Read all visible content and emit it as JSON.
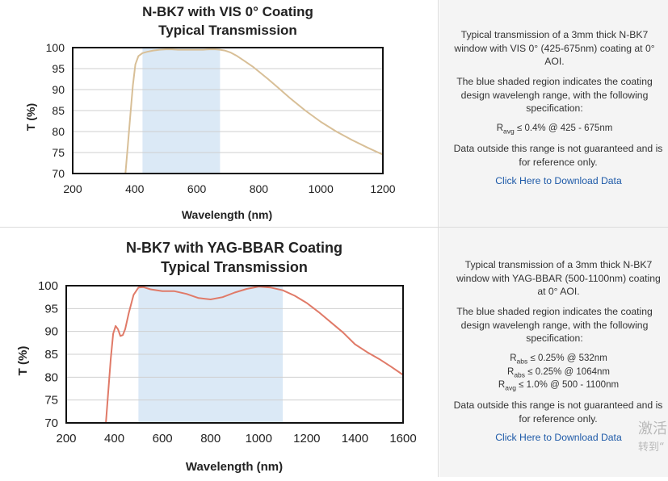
{
  "chart_data": [
    {
      "type": "line",
      "title": "N-BK7 with VIS 0° Coating",
      "subtitle": "Typical Transmission",
      "xlabel": "Wavelength (nm)",
      "ylabel": "T (%)",
      "xlim": [
        200,
        1200
      ],
      "ylim": [
        70,
        100
      ],
      "xticks": [
        "200",
        "400",
        "600",
        "800",
        "1000",
        "1200"
      ],
      "yticks": [
        "70",
        "75",
        "80",
        "85",
        "90",
        "95",
        "100"
      ],
      "grid": "horizontal",
      "shaded_range": [
        425,
        675
      ],
      "line_color": "#d8bf97",
      "shade_color": "#dbe9f6",
      "series": [
        {
          "x": [
            370,
            378,
            386,
            394,
            402,
            412,
            425,
            440,
            460,
            480,
            500,
            520,
            540,
            560,
            580,
            600,
            620,
            640,
            660,
            675,
            690,
            710,
            730,
            750,
            780,
            800,
            830,
            860,
            900,
            950,
            1000,
            1050,
            1100,
            1150,
            1200
          ],
          "y": [
            70,
            77,
            84,
            91,
            96,
            98,
            98.7,
            99,
            99.3,
            99.5,
            99.6,
            99.6,
            99.5,
            99.5,
            99.5,
            99.5,
            99.5,
            99.6,
            99.6,
            99.5,
            99.3,
            98.8,
            98.0,
            97.0,
            95.5,
            94.3,
            92.5,
            90.6,
            88.0,
            85.0,
            82.3,
            80.0,
            78.0,
            76.2,
            74.5
          ]
        }
      ]
    },
    {
      "type": "line",
      "title": "N-BK7 with YAG-BBAR Coating",
      "subtitle": "Typical Transmission",
      "xlabel": "Wavelength (nm)",
      "ylabel": "T (%)",
      "xlim": [
        200,
        1600
      ],
      "ylim": [
        70,
        100
      ],
      "xticks": [
        "200",
        "400",
        "600",
        "800",
        "1000",
        "1200",
        "1400",
        "1600"
      ],
      "yticks": [
        "70",
        "75",
        "80",
        "85",
        "90",
        "95",
        "100"
      ],
      "grid": "horizontal",
      "shaded_range": [
        500,
        1100
      ],
      "line_color": "#e07a68",
      "shade_color": "#dbe9f6",
      "series": [
        {
          "x": [
            365,
            375,
            385,
            395,
            405,
            415,
            425,
            435,
            445,
            460,
            480,
            500,
            520,
            550,
            600,
            650,
            700,
            750,
            800,
            850,
            900,
            950,
            1000,
            1050,
            1100,
            1150,
            1200,
            1250,
            1300,
            1350,
            1400,
            1450,
            1500,
            1550,
            1600
          ],
          "y": [
            70,
            77,
            84,
            89.5,
            91.2,
            90.5,
            89,
            89.2,
            90.5,
            94,
            98,
            99.6,
            99.7,
            99.2,
            98.8,
            98.8,
            98.2,
            97.3,
            97.0,
            97.5,
            98.5,
            99.3,
            99.8,
            99.6,
            99.0,
            97.8,
            96.2,
            94.2,
            92.0,
            89.8,
            87.2,
            85.5,
            84.0,
            82.3,
            80.5
          ]
        }
      ]
    }
  ],
  "desc": [
    {
      "intro": "Typical transmission of a 3mm thick N-BK7 window with VIS 0° (425-675nm) coating at 0° AOI.",
      "shaded": "The blue shaded region indicates the coating design wavelengh range, with the following specification:",
      "specs": [
        {
          "sym": "R",
          "sub": "avg",
          "text": "≤ 0.4% @ 425 - 675nm"
        }
      ],
      "disclaimer": "Data outside this range is not guaranteed and is for reference only.",
      "link": "Click Here to Download Data"
    },
    {
      "intro": "Typical transmission of a 3mm thick N-BK7 window with YAG-BBAR (500-1100nm) coating at 0° AOI.",
      "shaded": "The blue shaded region indicates the coating design wavelengh range, with the following specification:",
      "specs": [
        {
          "sym": "R",
          "sub": "abs",
          "text": "≤ 0.25% @ 532nm"
        },
        {
          "sym": "R",
          "sub": "abs",
          "text": "≤ 0.25% @ 1064nm"
        },
        {
          "sym": "R",
          "sub": "avg",
          "text": "≤ 1.0% @ 500 - 1100nm"
        }
      ],
      "disclaimer": "Data outside this range is not guaranteed and is for reference only.",
      "link": "Click Here to Download Data"
    }
  ],
  "watermark": {
    "line1": "激活",
    "line2": "转到“"
  }
}
